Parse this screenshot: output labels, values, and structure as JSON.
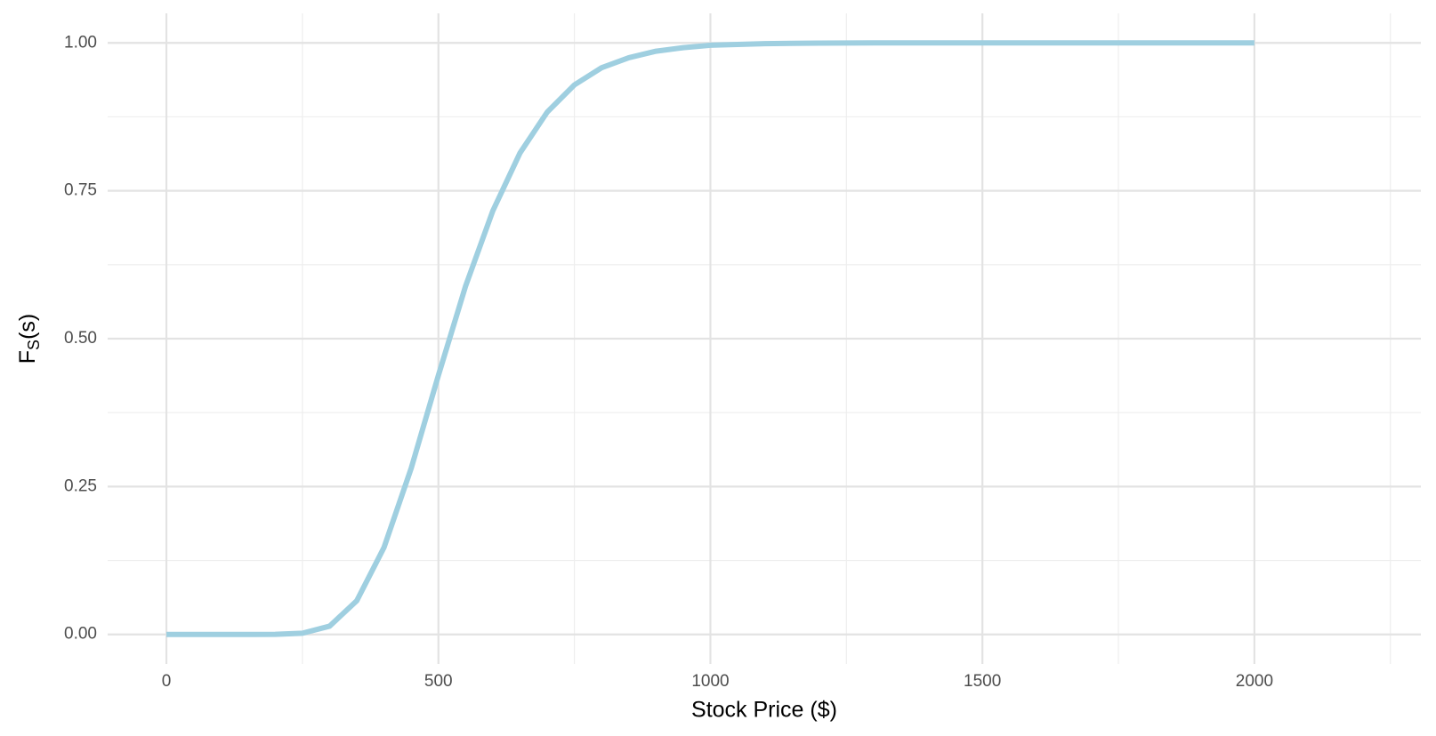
{
  "chart_data": {
    "type": "line",
    "x_label": "Stock Price ($)",
    "y_label": {
      "main": "F",
      "sub": "S",
      "end": "(s)"
    },
    "x": [
      0,
      50,
      100,
      150,
      200,
      250,
      300,
      350,
      400,
      450,
      500,
      550,
      600,
      650,
      700,
      750,
      800,
      850,
      900,
      950,
      1000,
      1050,
      1100,
      1150,
      1200,
      1300,
      1400,
      1500,
      1600,
      1700,
      1800,
      1900,
      2000
    ],
    "values": [
      0,
      0,
      0,
      0,
      0.0001,
      0.002,
      0.014,
      0.057,
      0.147,
      0.281,
      0.438,
      0.589,
      0.716,
      0.814,
      0.883,
      0.929,
      0.958,
      0.975,
      0.986,
      0.992,
      0.996,
      0.9975,
      0.9987,
      0.9992,
      0.9996,
      1,
      1,
      1,
      1,
      1,
      1,
      1,
      1
    ],
    "color": "#9fcfe0",
    "xlim": [
      -108,
      2306
    ],
    "ylim": [
      -0.05,
      1.05
    ],
    "xticks": [
      0,
      500,
      1000,
      1500,
      2000
    ],
    "yticks": [
      {
        "value": 0,
        "label": "0.00"
      },
      {
        "value": 0.25,
        "label": "0.25"
      },
      {
        "value": 0.5,
        "label": "0.50"
      },
      {
        "value": 0.75,
        "label": "0.75"
      },
      {
        "value": 1,
        "label": "1.00"
      }
    ],
    "x_minor_grid": [
      250,
      750,
      1250,
      1750,
      2250
    ],
    "y_minor_grid": [
      0.125,
      0.375,
      0.625,
      0.875
    ],
    "grid": true
  }
}
